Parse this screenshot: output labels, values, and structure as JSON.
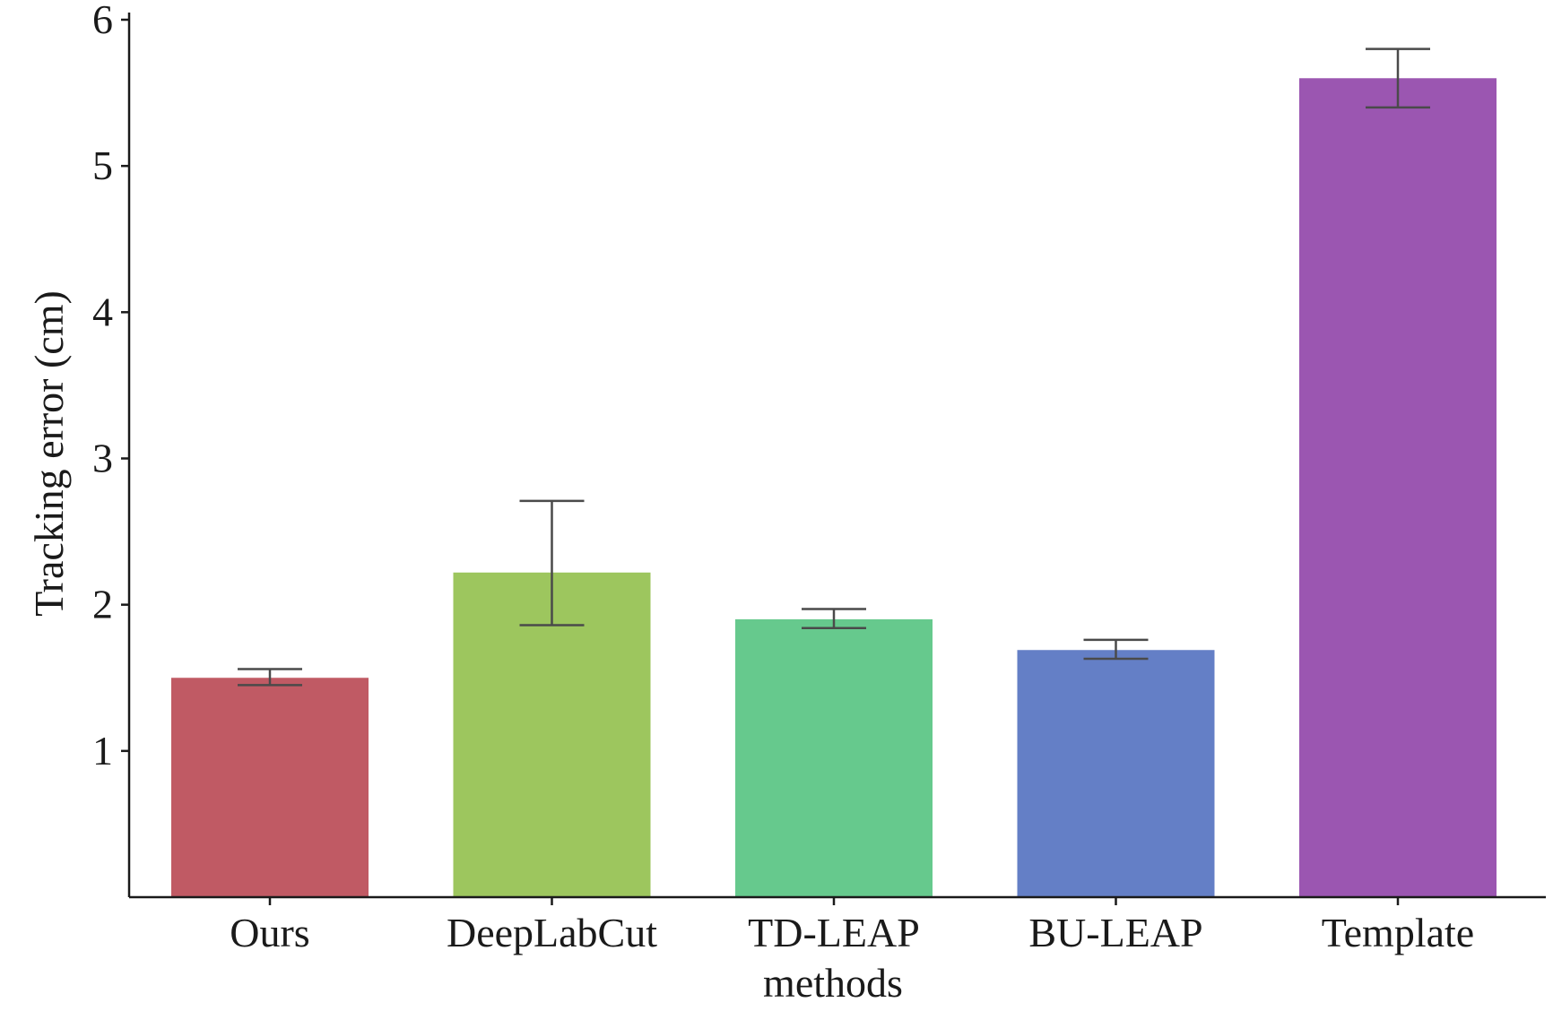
{
  "chart_data": {
    "type": "bar",
    "title": "",
    "xlabel": "methods",
    "ylabel": "Tracking error (cm)",
    "ylim": [
      0,
      6
    ],
    "yticks": [
      1,
      2,
      3,
      4,
      5,
      6
    ],
    "grid": false,
    "legend": "none",
    "categories": [
      "Ours",
      "DeepLabCut",
      "TD-LEAP",
      "BU-LEAP",
      "Template"
    ],
    "values": [
      1.5,
      2.22,
      1.9,
      1.69,
      5.6
    ],
    "error_low": [
      1.45,
      1.86,
      1.84,
      1.63,
      5.4
    ],
    "error_high": [
      1.56,
      2.71,
      1.97,
      1.76,
      5.8
    ],
    "colors": [
      "#c05a64",
      "#9dc65e",
      "#66c98d",
      "#647fc6",
      "#9b56b1"
    ],
    "errorbar_color": "#4a4a4a",
    "axis_color": "#1a1a1a"
  }
}
